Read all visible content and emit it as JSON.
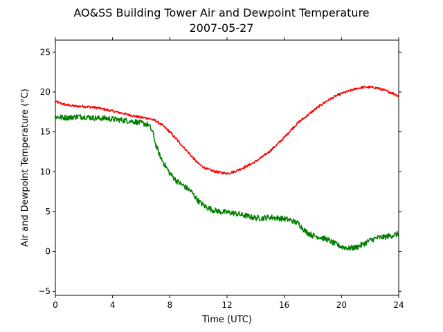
{
  "chart_data": {
    "type": "line",
    "title": "AO&SS Building Tower Air and Dewpoint Temperature",
    "subtitle": "2007-05-27",
    "xlabel": "Time (UTC)",
    "ylabel": "Air and Dewpoint Temperature (°C)",
    "xlim": [
      0,
      24
    ],
    "ylim": [
      -5.5,
      26.5
    ],
    "xticks": [
      0,
      4,
      8,
      12,
      16,
      20,
      24
    ],
    "yticks": [
      -5,
      0,
      5,
      10,
      15,
      20,
      25
    ],
    "grid": false,
    "legend": "none",
    "series": [
      {
        "color": "#ff0000",
        "x": [
          0,
          0.5,
          1,
          1.5,
          2,
          2.5,
          3,
          3.5,
          4,
          4.5,
          5,
          5.5,
          6,
          6.5,
          7,
          7.5,
          8,
          8.5,
          9,
          9.5,
          10,
          10.5,
          11,
          11.5,
          12,
          12.5,
          13,
          13.5,
          14,
          14.5,
          15,
          15.5,
          16,
          16.5,
          17,
          17.5,
          18,
          18.5,
          19,
          19.5,
          20,
          20.5,
          21,
          21.5,
          22,
          22.5,
          23,
          23.5,
          24
        ],
        "values": [
          18.8,
          18.5,
          18.3,
          18.2,
          18.2,
          18.1,
          18.0,
          17.8,
          17.6,
          17.4,
          17.2,
          17.0,
          16.8,
          16.7,
          16.4,
          15.8,
          15.0,
          14.0,
          13.0,
          12.0,
          11.0,
          10.4,
          10.1,
          9.9,
          9.8,
          10.0,
          10.4,
          10.8,
          11.3,
          11.9,
          12.6,
          13.4,
          14.3,
          15.3,
          16.2,
          16.9,
          17.6,
          18.3,
          18.9,
          19.4,
          19.8,
          20.1,
          20.4,
          20.6,
          20.6,
          20.5,
          20.2,
          19.9,
          19.5
        ],
        "noise": 0.15
      },
      {
        "color": "#008000",
        "x": [
          0,
          0.5,
          1,
          1.5,
          2,
          2.5,
          3,
          3.5,
          4,
          4.5,
          5,
          5.5,
          6,
          6.5,
          6.8,
          7,
          7.3,
          7.6,
          8,
          8.5,
          9,
          9.5,
          10,
          10.5,
          11,
          11.5,
          12,
          12.5,
          13,
          13.5,
          14,
          14.5,
          15,
          15.5,
          16,
          16.5,
          17,
          17.5,
          18,
          18.5,
          19,
          19.5,
          20,
          20.5,
          21,
          21.5,
          22,
          22.5,
          23,
          23.5,
          24
        ],
        "values": [
          16.9,
          16.8,
          16.8,
          16.9,
          16.9,
          16.8,
          16.7,
          16.7,
          16.6,
          16.5,
          16.4,
          16.3,
          16.1,
          15.9,
          15.0,
          13.5,
          12.0,
          11.0,
          9.8,
          8.8,
          8.2,
          7.5,
          6.3,
          5.6,
          5.2,
          5.0,
          4.9,
          4.8,
          4.6,
          4.4,
          4.2,
          4.2,
          4.3,
          4.2,
          4.1,
          3.9,
          3.5,
          2.5,
          2.0,
          1.8,
          1.5,
          1.0,
          0.6,
          0.4,
          0.5,
          0.9,
          1.4,
          1.7,
          1.8,
          2.0,
          2.2
        ],
        "noise": 0.35
      }
    ]
  }
}
